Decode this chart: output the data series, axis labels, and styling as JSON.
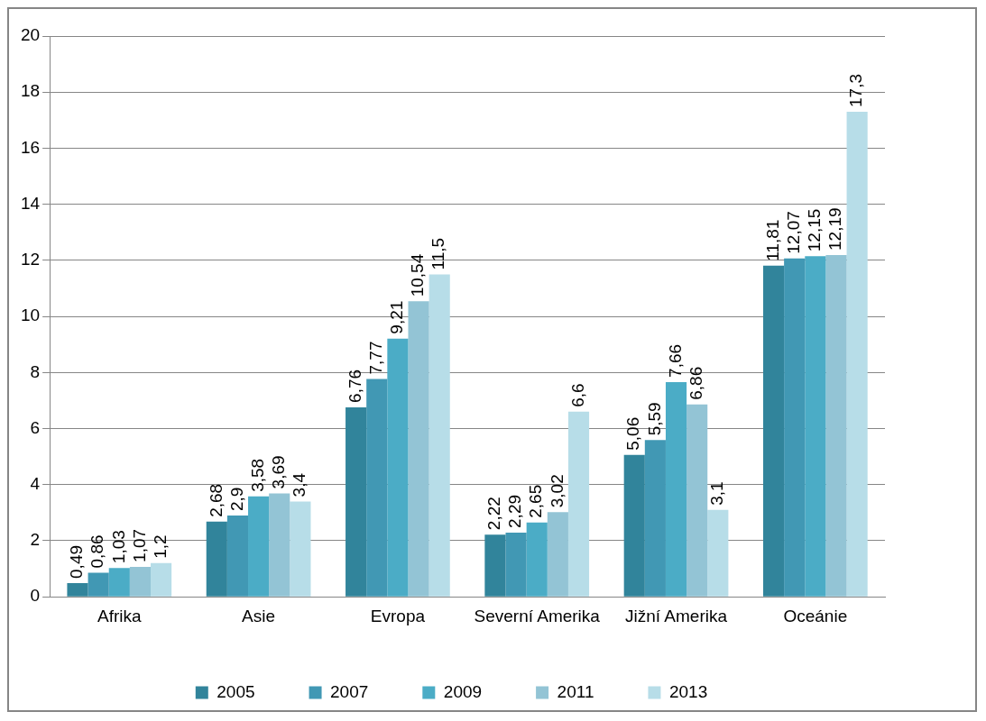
{
  "chart_data": {
    "type": "bar",
    "categories": [
      "Afrika",
      "Asie",
      "Evropa",
      "Severní Amerika",
      "Jižní Amerika",
      "Oceánie"
    ],
    "series": [
      {
        "name": "2005",
        "color": "#31849b",
        "values": [
          0.49,
          2.68,
          6.76,
          2.22,
          5.06,
          11.81
        ],
        "value_labels": [
          "0,49",
          "2,68",
          "6,76",
          "2,22",
          "5,06",
          "11,81"
        ]
      },
      {
        "name": "2007",
        "color": "#4198b4",
        "values": [
          0.86,
          2.9,
          7.77,
          2.29,
          5.59,
          12.07
        ],
        "value_labels": [
          "0,86",
          "2,9",
          "7,77",
          "2,29",
          "5,59",
          "12,07"
        ]
      },
      {
        "name": "2009",
        "color": "#4bacc6",
        "values": [
          1.03,
          3.58,
          9.21,
          2.65,
          7.66,
          12.15
        ],
        "value_labels": [
          "1,03",
          "3,58",
          "9,21",
          "2,65",
          "7,66",
          "12,15"
        ]
      },
      {
        "name": "2011",
        "color": "#93c4d5",
        "values": [
          1.07,
          3.69,
          10.54,
          3.02,
          6.86,
          12.19
        ],
        "value_labels": [
          "1,07",
          "3,69",
          "10,54",
          "3,02",
          "6,86",
          "12,19"
        ]
      },
      {
        "name": "2013",
        "color": "#b7dde8",
        "values": [
          1.2,
          3.4,
          11.5,
          6.6,
          3.1,
          17.3
        ],
        "value_labels": [
          "1,2",
          "3,4",
          "11,5",
          "6,6",
          "3,1",
          "17,3"
        ]
      }
    ],
    "ylim": [
      0,
      20
    ],
    "yticks": [
      0,
      2,
      4,
      6,
      8,
      10,
      12,
      14,
      16,
      18,
      20
    ],
    "grid": "y",
    "legend": "bottom"
  }
}
